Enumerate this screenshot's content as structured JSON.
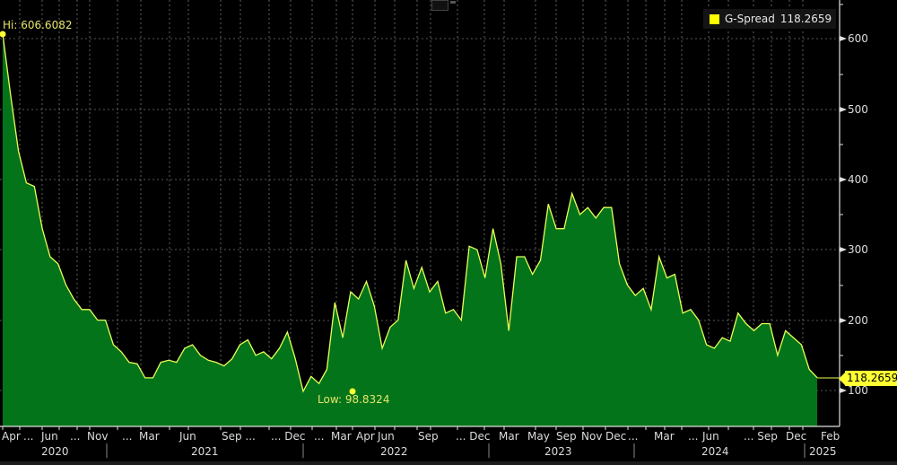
{
  "toolbar": {
    "chart_type_icon": "line-chart-icon"
  },
  "legend": {
    "series_name": "G-Spread",
    "series_value": "118.2659",
    "color": "#ffff00"
  },
  "annotations": {
    "hi": "Hi: 606.6082",
    "low": "Low: 98.8324",
    "last_value": "118.2659"
  },
  "y_axis": {
    "ticks": [
      "600",
      "500",
      "400",
      "300",
      "200",
      "100"
    ]
  },
  "x_axis": {
    "month_labels": [
      "Apr",
      "...",
      "Jun",
      "...",
      "Nov",
      "...",
      "Mar",
      "Jun",
      "Sep ...",
      "... Dec",
      "...",
      "Mar",
      "Apr",
      "Jun",
      "Sep",
      "... Dec",
      "Mar",
      "May",
      "Sep",
      "Nov",
      "Dec",
      "...",
      "Mar",
      "...",
      "Jun",
      "... Sep",
      "Dec",
      "Feb"
    ],
    "year_labels": [
      "2020",
      "2021",
      "2022",
      "2023",
      "2024",
      "2025"
    ]
  },
  "colors": {
    "fill": "#04741b",
    "line": "#e8ff55",
    "background": "#000000",
    "grid": "#6a6a6a",
    "marker": "#ffff33"
  },
  "chart_data": {
    "type": "area",
    "title": "",
    "series": [
      {
        "name": "G-Spread",
        "last": 118.2659,
        "high": 606.6082,
        "low": 98.8324,
        "x": [
          "2020-04",
          "2020-04",
          "2020-05",
          "2020-05",
          "2020-06",
          "2020-06",
          "2020-07",
          "2020-07",
          "2020-08",
          "2020-09",
          "2020-10",
          "2020-10",
          "2020-11",
          "2020-11",
          "2020-12",
          "2021-01",
          "2021-02",
          "2021-02",
          "2021-03",
          "2021-04",
          "2021-05",
          "2021-06",
          "2021-07",
          "2021-07",
          "2021-08",
          "2021-08",
          "2021-09",
          "2021-09",
          "2021-10",
          "2021-10",
          "2021-11",
          "2021-11",
          "2021-12",
          "2021-12",
          "2022-01",
          "2022-02",
          "2022-02",
          "2022-03",
          "2022-03",
          "2022-04",
          "2022-04",
          "2022-05",
          "2022-05",
          "2022-06",
          "2022-06",
          "2022-07",
          "2022-07",
          "2022-08",
          "2022-09",
          "2022-09",
          "2022-10",
          "2022-10",
          "2022-11",
          "2022-11",
          "2022-12",
          "2022-12",
          "2023-01",
          "2023-01",
          "2023-02",
          "2023-03",
          "2023-03",
          "2023-04",
          "2023-04",
          "2023-05",
          "2023-05",
          "2023-06",
          "2023-06",
          "2023-07",
          "2023-08",
          "2023-08",
          "2023-09",
          "2023-09",
          "2023-10",
          "2023-10",
          "2023-11",
          "2023-11",
          "2023-12",
          "2023-12",
          "2024-01",
          "2024-01",
          "2024-02",
          "2024-02",
          "2024-03",
          "2024-03",
          "2024-04",
          "2024-04",
          "2024-05",
          "2024-05",
          "2024-06",
          "2024-06",
          "2024-07",
          "2024-07",
          "2024-08",
          "2024-08",
          "2024-09",
          "2024-09",
          "2024-10",
          "2024-10",
          "2024-11",
          "2024-11",
          "2024-12",
          "2024-12",
          "2025-01",
          "2025-02"
        ],
        "values": [
          606.6,
          520,
          440,
          395,
          390,
          330,
          290,
          280,
          250,
          230,
          215,
          215,
          200,
          200,
          165,
          155,
          140,
          138,
          118,
          118,
          140,
          143,
          140,
          160,
          165,
          150,
          143,
          140,
          135,
          145,
          165,
          172,
          150,
          155,
          145,
          160,
          183,
          145,
          98.8,
          120,
          110,
          130,
          225,
          175,
          240,
          230,
          255,
          220,
          160,
          190,
          200,
          285,
          245,
          275,
          240,
          255,
          210,
          215,
          200,
          305,
          300,
          260,
          330,
          280,
          185,
          290,
          290,
          265,
          285,
          365,
          330,
          330,
          380,
          350,
          360,
          345,
          360,
          360,
          280,
          250,
          235,
          245,
          215,
          290,
          260,
          265,
          210,
          215,
          200,
          165,
          160,
          175,
          170,
          210,
          195,
          185,
          195,
          195,
          150,
          185,
          175,
          165,
          130,
          118.3
        ]
      }
    ],
    "xlabel": "",
    "ylabel": "",
    "ylim": [
      30,
      640
    ],
    "grid": true,
    "legend_position": "top-right"
  }
}
